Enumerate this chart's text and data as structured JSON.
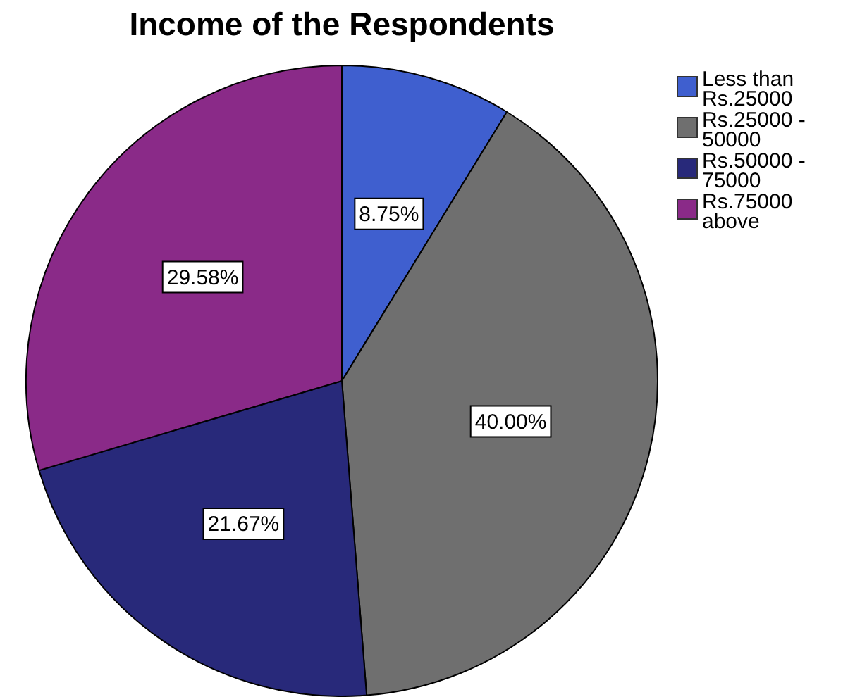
{
  "chart_data": {
    "type": "pie",
    "title": "Income of the Respondents",
    "categories": [
      "Less than Rs.25000",
      "Rs.25000 - 50000",
      "Rs.50000 - 75000",
      "Rs.75000 above"
    ],
    "values": [
      8.75,
      40.0,
      21.67,
      29.58
    ],
    "colors": [
      "#3f5fcf",
      "#6f6f6f",
      "#28297a",
      "#8a2a88"
    ],
    "value_labels": [
      "8.75%",
      "40.00%",
      "21.67%",
      "29.58%"
    ],
    "legend": "top right"
  }
}
